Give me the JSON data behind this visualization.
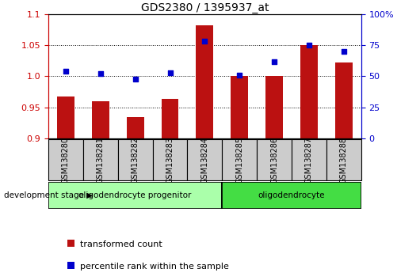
{
  "title": "GDS2380 / 1395937_at",
  "samples": [
    "GSM138280",
    "GSM138281",
    "GSM138282",
    "GSM138283",
    "GSM138284",
    "GSM138285",
    "GSM138286",
    "GSM138287",
    "GSM138288"
  ],
  "bar_values": [
    0.967,
    0.96,
    0.934,
    0.964,
    1.082,
    1.0,
    1.0,
    1.05,
    1.022
  ],
  "percentile_values": [
    54,
    52,
    48,
    53,
    78,
    51,
    62,
    75,
    70
  ],
  "bar_color": "#bb1111",
  "percentile_color": "#0000cc",
  "ylim_left": [
    0.9,
    1.1
  ],
  "ylim_right": [
    0,
    100
  ],
  "yticks_left": [
    0.9,
    0.95,
    1.0,
    1.05,
    1.1
  ],
  "yticks_right": [
    0,
    25,
    50,
    75,
    100
  ],
  "ytick_labels_right": [
    "0",
    "25",
    "50",
    "75",
    "100%"
  ],
  "groups": [
    {
      "label": "oligodendrocyte progenitor",
      "n_samples": 5,
      "color": "#aaffaa"
    },
    {
      "label": "oligodendrocyte",
      "n_samples": 4,
      "color": "#44dd44"
    }
  ],
  "group_label": "development stage",
  "legend_bar_label": "transformed count",
  "legend_pct_label": "percentile rank within the sample",
  "bar_width": 0.5,
  "tick_label_color_left": "#cc0000",
  "tick_label_color_right": "#0000cc",
  "xtick_box_color": "#cccccc",
  "xtick_box_edge": "#888888"
}
